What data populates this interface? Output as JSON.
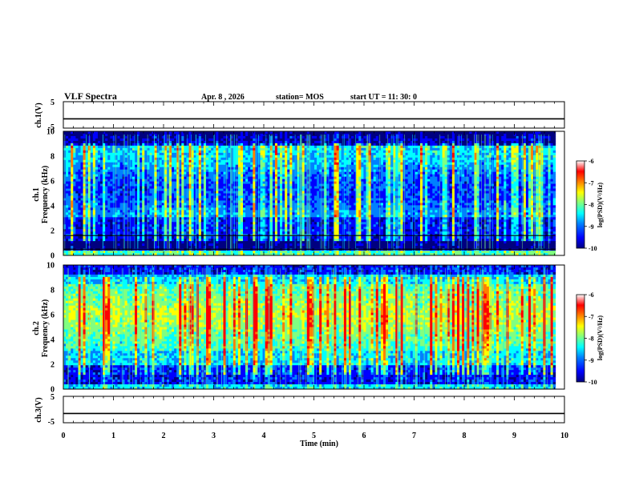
{
  "header": {
    "title": "VLF Spectra",
    "date": "Apr. 8  , 2026",
    "station": "station= MOS",
    "start": "start  UT  =   11: 30: 0"
  },
  "chart_data": [
    {
      "type": "line",
      "name": "ch1-voltage",
      "ylabel": "ch.1(V)",
      "ylim": [
        -5,
        5
      ],
      "ytick_labels": [
        "5",
        "-5"
      ],
      "xlim": [
        0,
        10
      ],
      "x": [
        0,
        10
      ],
      "values": [
        -1.5,
        -1.5
      ]
    },
    {
      "type": "heatmap",
      "name": "ch1-spectrogram",
      "ylabel": "ch.1\nFrequency (kHz)",
      "ylabel_line1": "ch.1",
      "ylabel_line2": "Frequency (kHz)",
      "ylim": [
        0,
        10
      ],
      "ytick_labels": [
        "0",
        "2",
        "4",
        "6",
        "8",
        "10"
      ],
      "xlim": [
        0,
        10
      ],
      "data_x_extent": [
        0,
        9.82
      ],
      "colorbar": {
        "label": "log(PSD)(V²/Hz)",
        "range": [
          -10,
          -6
        ],
        "tick_labels": [
          "-6",
          "-7",
          "-8",
          "-9",
          "-10"
        ]
      }
    },
    {
      "type": "heatmap",
      "name": "ch2-spectrogram",
      "ylabel": "ch.2\nFrequency (kHz)",
      "ylabel_line1": "ch.2",
      "ylabel_line2": "Frequency (kHz)",
      "ylim": [
        0,
        10
      ],
      "ytick_labels": [
        "0",
        "2",
        "4",
        "6",
        "8",
        "10"
      ],
      "xlim": [
        0,
        10
      ],
      "data_x_extent": [
        0,
        9.82
      ],
      "colorbar": {
        "label": "log(PSD)(V²/Hz)",
        "range": [
          -10,
          -6
        ],
        "tick_labels": [
          "-6",
          "-7",
          "-8",
          "-9",
          "-10"
        ]
      }
    },
    {
      "type": "line",
      "name": "ch3-voltage",
      "ylabel": "ch.3(V)",
      "ylim": [
        -5,
        5
      ],
      "ytick_labels": [
        "5",
        "-5"
      ],
      "xlim": [
        0,
        10
      ],
      "x": [
        0,
        10
      ],
      "values": [
        -1.5,
        -1.5
      ]
    }
  ],
  "x_axis": {
    "label": "Time  (min)",
    "tick_labels": [
      "0",
      "1",
      "2",
      "3",
      "4",
      "5",
      "6",
      "7",
      "8",
      "9",
      "10"
    ]
  },
  "colors": {
    "colormap": [
      "#000080",
      "#0000ff",
      "#0080ff",
      "#00ffff",
      "#80ff80",
      "#ffff00",
      "#ff8000",
      "#ff0000",
      "#ffffff"
    ]
  }
}
